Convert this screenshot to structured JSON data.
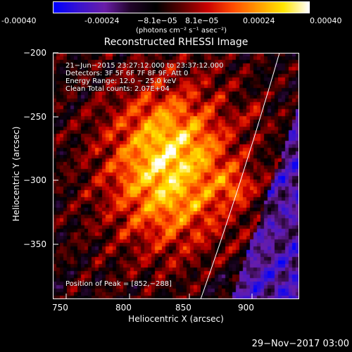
{
  "colorbar": {
    "ticks": [
      "-0.00040",
      "-0.00024",
      "−8.1e−05",
      "8.1e−05",
      "0.00024",
      "0.00040"
    ],
    "units": "(photons cm⁻² s⁻¹ asec⁻²)"
  },
  "plot": {
    "title": "Reconstructed RHESSI Image",
    "xlabel": "Heliocentric X (arcsec)",
    "ylabel": "Heliocentric Y (arcsec)",
    "xticks": [
      "750",
      "800",
      "850",
      "900"
    ],
    "yticks": [
      "−200",
      "−250",
      "−300",
      "−350"
    ],
    "info": {
      "line1": "21−Jun−2015 23:27:12.000 to 23:37:12.000",
      "line2": "Detectors: 3F 5F 6F 7F 8F 9F, Att 0",
      "line3": "Energy Range: 12.0 − 25.0 keV",
      "line4": "Clean     Total counts: 2.07E+04"
    },
    "peak_label": "Position of Peak = [852,−288]"
  },
  "footer": {
    "date": "29−Nov−2017 03:00"
  },
  "chart_data": {
    "type": "heatmap",
    "title": "Reconstructed RHESSI Image",
    "xlabel": "Heliocentric X (arcsec)",
    "ylabel": "Heliocentric Y (arcsec)",
    "xlim": [
      745,
      935
    ],
    "ylim": [
      -390,
      -200
    ],
    "colorbar_range": [
      -0.0004,
      0.0004
    ],
    "peak": [
      852,
      -288
    ],
    "colormap": [
      "#0000ff",
      "#3a14d0",
      "#6a1ea8",
      "#22052a",
      "#000000",
      "#5a0000",
      "#c80000",
      "#ff4a00",
      "#ff9a00",
      "#ffe600",
      "#ffffff"
    ]
  }
}
